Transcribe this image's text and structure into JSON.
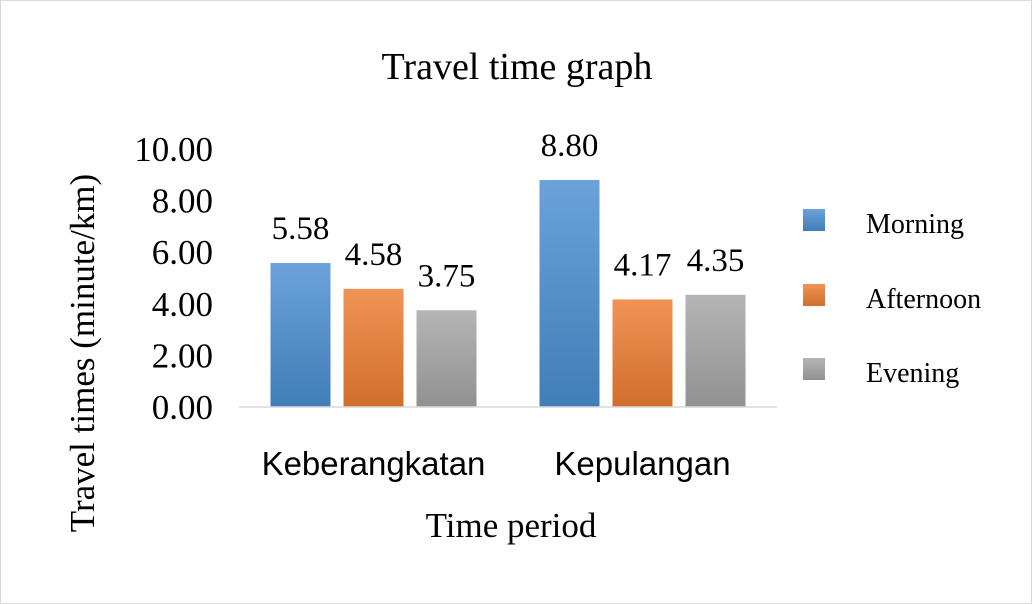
{
  "chart_data": {
    "type": "bar",
    "title": "Travel time graph",
    "xlabel": "Time period",
    "ylabel": "Travel times (minute/km)",
    "categories": [
      "Keberangkatan",
      "Kepulangan"
    ],
    "series": [
      {
        "name": "Morning",
        "values": [
          5.58,
          8.8
        ],
        "color": "#4a8ed1"
      },
      {
        "name": "Afternoon",
        "values": [
          4.58,
          4.17
        ],
        "color": "#ed7d31"
      },
      {
        "name": "Evening",
        "values": [
          3.75,
          4.35
        ],
        "color": "#a5a5a5"
      }
    ],
    "value_labels": [
      [
        "5.58",
        "8.80"
      ],
      [
        "4.58",
        "4.17"
      ],
      [
        "3.75",
        "4.35"
      ]
    ],
    "ylim": [
      0,
      10
    ],
    "yticks": [
      "0.00",
      "2.00",
      "4.00",
      "6.00",
      "8.00",
      "10.00"
    ],
    "grid": false,
    "legend_position": "right"
  }
}
